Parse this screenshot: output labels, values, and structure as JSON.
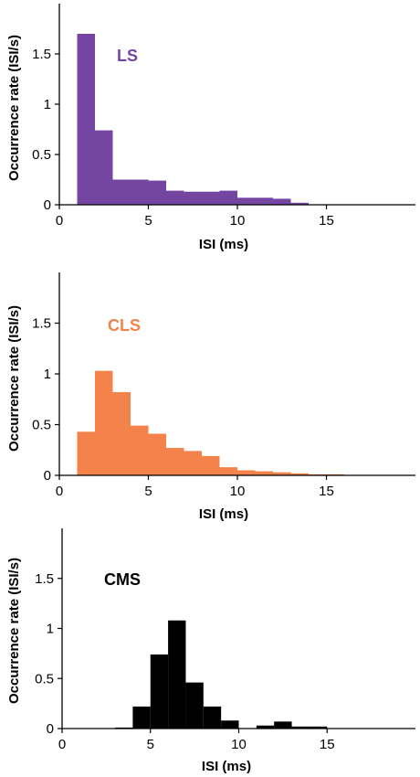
{
  "chart_data": [
    {
      "type": "bar",
      "panel_label": "LS",
      "color": "#7446a2",
      "xlabel": "ISI (ms)",
      "ylabel": "Occurrence rate (ISI/s)",
      "xlim": [
        0,
        20
      ],
      "ylim": [
        0,
        2
      ],
      "xticks": [
        0,
        5,
        10,
        15
      ],
      "yticks": [
        0,
        0.5,
        1,
        1.5
      ],
      "bin_width": 1,
      "bins": [
        {
          "x": 1,
          "y": 1.7
        },
        {
          "x": 2,
          "y": 0.74
        },
        {
          "x": 3,
          "y": 0.25
        },
        {
          "x": 4,
          "y": 0.25
        },
        {
          "x": 5,
          "y": 0.24
        },
        {
          "x": 6,
          "y": 0.14
        },
        {
          "x": 7,
          "y": 0.13
        },
        {
          "x": 8,
          "y": 0.13
        },
        {
          "x": 9,
          "y": 0.14
        },
        {
          "x": 10,
          "y": 0.07
        },
        {
          "x": 11,
          "y": 0.07
        },
        {
          "x": 12,
          "y": 0.06
        },
        {
          "x": 13,
          "y": 0.02
        }
      ]
    },
    {
      "type": "bar",
      "panel_label": "CLS",
      "color": "#f3834a",
      "xlabel": "ISI (ms)",
      "ylabel": "Occurrence rate (ISI/s)",
      "xlim": [
        0,
        20
      ],
      "ylim": [
        0,
        2
      ],
      "xticks": [
        0,
        5,
        10,
        15
      ],
      "yticks": [
        0,
        0.5,
        1,
        1.5
      ],
      "bin_width": 1,
      "bins": [
        {
          "x": 1,
          "y": 0.43
        },
        {
          "x": 2,
          "y": 1.03
        },
        {
          "x": 3,
          "y": 0.82
        },
        {
          "x": 4,
          "y": 0.49
        },
        {
          "x": 5,
          "y": 0.41
        },
        {
          "x": 6,
          "y": 0.27
        },
        {
          "x": 7,
          "y": 0.24
        },
        {
          "x": 8,
          "y": 0.19
        },
        {
          "x": 9,
          "y": 0.08
        },
        {
          "x": 10,
          "y": 0.05
        },
        {
          "x": 11,
          "y": 0.04
        },
        {
          "x": 12,
          "y": 0.03
        },
        {
          "x": 13,
          "y": 0.02
        },
        {
          "x": 14,
          "y": 0.01
        },
        {
          "x": 15,
          "y": 0.01
        }
      ]
    },
    {
      "type": "bar",
      "panel_label": "CMS",
      "color": "#000000",
      "xlabel": "ISI (ms)",
      "ylabel": "Occurrence rate (ISI/s)",
      "xlim": [
        0,
        20
      ],
      "ylim": [
        0,
        2
      ],
      "xticks": [
        0,
        5,
        10,
        15
      ],
      "yticks": [
        0,
        0.5,
        1,
        1.5
      ],
      "bin_width": 1,
      "bins": [
        {
          "x": 3,
          "y": 0.01
        },
        {
          "x": 4,
          "y": 0.22
        },
        {
          "x": 5,
          "y": 0.74
        },
        {
          "x": 6,
          "y": 1.08
        },
        {
          "x": 7,
          "y": 0.46
        },
        {
          "x": 8,
          "y": 0.22
        },
        {
          "x": 9,
          "y": 0.08
        },
        {
          "x": 11,
          "y": 0.03
        },
        {
          "x": 12,
          "y": 0.07
        },
        {
          "x": 13,
          "y": 0.02
        },
        {
          "x": 14,
          "y": 0.02
        }
      ]
    }
  ]
}
